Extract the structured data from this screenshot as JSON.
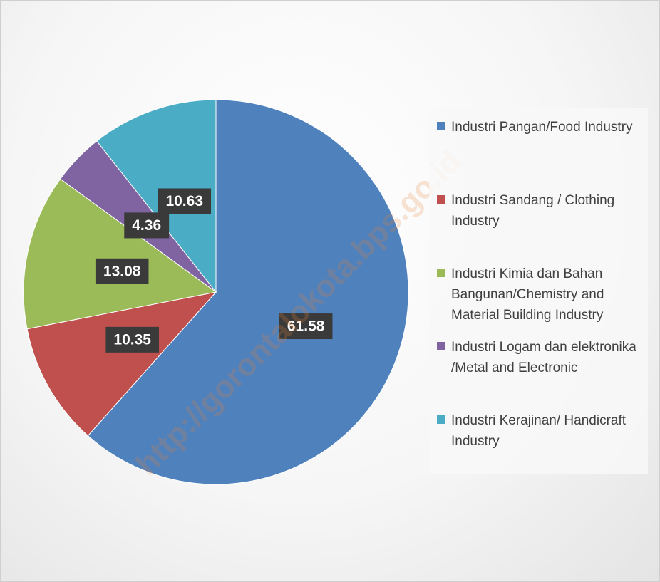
{
  "chart_data": {
    "type": "pie",
    "categories": [
      "Industri Pangan/Food Industry",
      "Industri Sandang / Clothing Industry",
      "Industri Kimia dan Bahan Bangunan/Chemistry and Material Building Industry",
      "Industri Logam dan elektronika /Metal and Electronic",
      "Industri Kerajinan/ Handicraft Industry"
    ],
    "values": [
      61.58,
      10.35,
      13.08,
      4.36,
      10.63
    ],
    "colors": [
      "#4f81bd",
      "#c0504d",
      "#9bbb59",
      "#8064a2",
      "#4bacc6"
    ],
    "legend": "right",
    "watermark": "http://gorontalokota.bps.go.id"
  }
}
